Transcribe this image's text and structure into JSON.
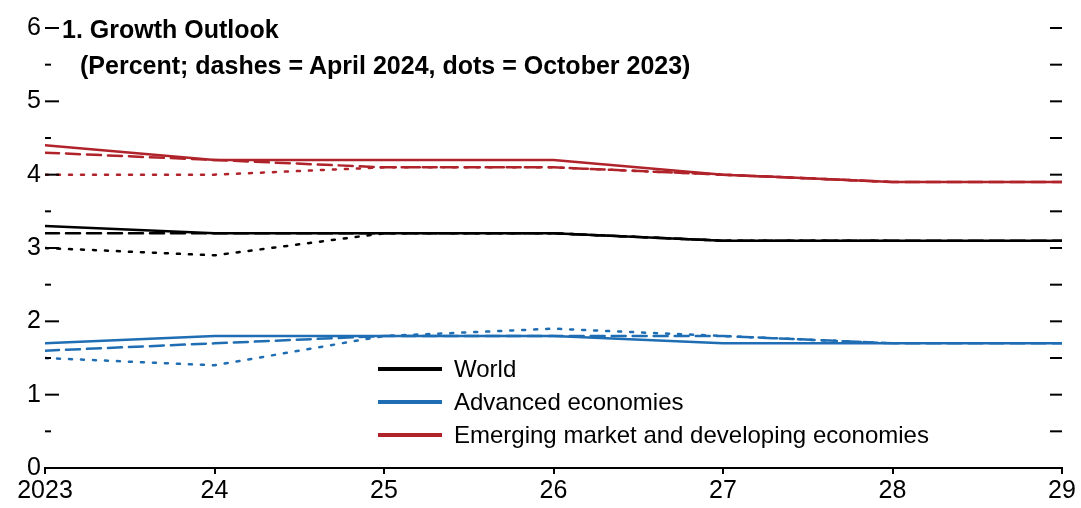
{
  "chart_data": {
    "type": "line",
    "title": "1. Growth Outlook",
    "subtitle": "(Percent; dashes = April 2024, dots = October 2023)",
    "x": [
      2023,
      2024,
      2025,
      2026,
      2027,
      2028,
      2029
    ],
    "xlim": [
      2023,
      2029
    ],
    "xticks": [
      2023,
      {
        "value": 2024,
        "label": "24"
      },
      {
        "value": 2025,
        "label": "25"
      },
      {
        "value": 2026,
        "label": "26"
      },
      {
        "value": 2027,
        "label": "27"
      },
      {
        "value": 2028,
        "label": "28"
      },
      {
        "value": 2029,
        "label": "29"
      }
    ],
    "ylim": [
      0,
      6
    ],
    "yticks": [
      0,
      {
        "value": 0.5,
        "label": null
      },
      1,
      {
        "value": 1.5,
        "label": null
      },
      2,
      {
        "value": 2.5,
        "label": null
      },
      3,
      {
        "value": 3.5,
        "label": null
      },
      4,
      {
        "value": 4.5,
        "label": null
      },
      5,
      {
        "value": 5.5,
        "label": null
      },
      6
    ],
    "grid": false,
    "legend": "bottom",
    "marker": "none",
    "series": [
      {
        "name": "World",
        "color": "#000000",
        "line_style": "solid",
        "values": [
          3.3,
          3.2,
          3.2,
          3.2,
          3.1,
          3.1,
          3.1
        ]
      },
      {
        "name": "Advanced economies",
        "color": "#1f6db3",
        "line_style": "solid",
        "values": [
          1.7,
          1.8,
          1.8,
          1.8,
          1.7,
          1.7,
          1.7
        ]
      },
      {
        "name": "Emerging market and developing economies",
        "color": "#b0232a",
        "line_style": "solid",
        "values": [
          4.4,
          4.2,
          4.2,
          4.2,
          4.0,
          3.9,
          3.9
        ]
      },
      {
        "color": "#000000",
        "line_style": "dashed",
        "values": [
          3.2,
          3.2,
          3.2,
          3.2,
          3.1,
          3.1,
          3.1
        ]
      },
      {
        "color": "#1f6db3",
        "line_style": "dashed",
        "values": [
          1.6,
          1.7,
          1.8,
          1.8,
          1.8,
          1.7,
          1.7
        ]
      },
      {
        "color": "#b0232a",
        "line_style": "dashed",
        "values": [
          4.3,
          4.2,
          4.1,
          4.1,
          4.0,
          3.9,
          3.9
        ]
      },
      {
        "color": "#000000",
        "line_style": "dotted",
        "values": [
          3.0,
          2.9,
          3.2,
          3.2,
          3.1,
          3.1,
          null
        ]
      },
      {
        "color": "#1f6db3",
        "line_style": "dotted",
        "values": [
          1.5,
          1.4,
          1.8,
          1.9,
          1.8,
          1.7,
          null
        ]
      },
      {
        "color": "#b0232a",
        "line_style": "dotted",
        "values": [
          4.0,
          4.0,
          4.1,
          4.1,
          4.0,
          3.9,
          null
        ]
      }
    ]
  }
}
